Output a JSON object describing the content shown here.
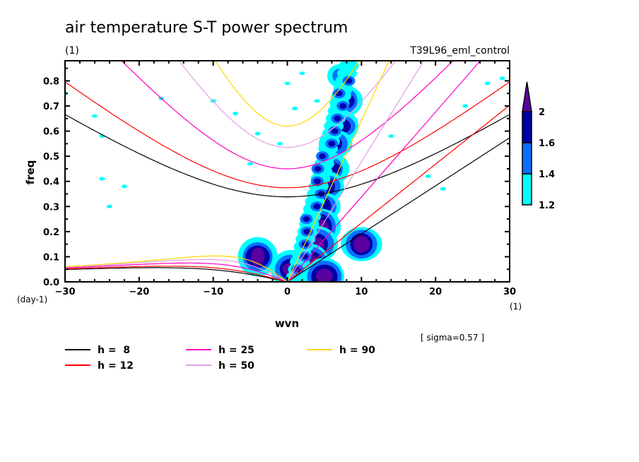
{
  "chart_data": {
    "type": "heatmap",
    "title": "air temperature S-T power spectrum",
    "subtitle_left": "(1)",
    "subtitle_right": "T39L96_eml_control",
    "xlabel": "wvn",
    "ylabel": "freq",
    "x_unit_label": "(1)",
    "y_unit_label": "(day-1)",
    "xlim": [
      -30,
      30
    ],
    "ylim": [
      0,
      0.88
    ],
    "xticks": [
      -30,
      -20,
      -10,
      0,
      10,
      20,
      30
    ],
    "xtick_labels": [
      "−30",
      "−20",
      "−10",
      "0",
      "10",
      "20",
      "30"
    ],
    "yticks": [
      0.0,
      0.1,
      0.2,
      0.3,
      0.4,
      0.5,
      0.6,
      0.7,
      0.8
    ],
    "ytick_labels": [
      "0.0",
      "0.1",
      "0.2",
      "0.3",
      "0.4",
      "0.5",
      "0.6",
      "0.7",
      "0.8"
    ],
    "annotation": "[ sigma=0.57 ]",
    "colorbar": {
      "levels": [
        1.2,
        1.4,
        1.6,
        2
      ],
      "level_labels": [
        "1.2",
        "1.4",
        "1.6",
        "2"
      ],
      "colors": [
        "#00ffff",
        "#0a6eff",
        "#0000a8",
        "#5a00a0"
      ],
      "extend": "max"
    },
    "contour_regions": [
      {
        "wvn": 7.0,
        "freq": 0.82,
        "level": 1.4
      },
      {
        "wvn": 8.0,
        "freq": 0.72,
        "level": 1.6
      },
      {
        "wvn": 7.5,
        "freq": 0.62,
        "level": 1.6
      },
      {
        "wvn": 6.5,
        "freq": 0.55,
        "level": 1.6
      },
      {
        "wvn": 6.0,
        "freq": 0.45,
        "level": 1.6
      },
      {
        "wvn": 5.5,
        "freq": 0.38,
        "level": 1.6
      },
      {
        "wvn": 5.0,
        "freq": 0.3,
        "level": 1.6
      },
      {
        "wvn": 4.5,
        "freq": 0.22,
        "level": 2
      },
      {
        "wvn": 4.0,
        "freq": 0.15,
        "level": 2
      },
      {
        "wvn": 3.0,
        "freq": 0.08,
        "level": 2
      },
      {
        "wvn": 0.5,
        "freq": 0.05,
        "level": 2
      },
      {
        "wvn": 5.0,
        "freq": 0.02,
        "level": 2
      },
      {
        "wvn": 10.0,
        "freq": 0.15,
        "level": 2
      },
      {
        "wvn": -4.0,
        "freq": 0.1,
        "level": 2
      }
    ],
    "legend": {
      "placement": "bottom",
      "entries": [
        {
          "label": "h =  8",
          "color": "#000000",
          "h": 8
        },
        {
          "label": "h = 12",
          "color": "#ff0000",
          "h": 12
        },
        {
          "label": "h = 25",
          "color": "#ff00c0",
          "h": 25
        },
        {
          "label": "h = 50",
          "color": "#e0a0e0",
          "h": 50
        },
        {
          "label": "h = 90",
          "color": "#ffd700",
          "h": 90
        }
      ]
    },
    "dispersion_curves": {
      "equivalent_depths_m": [
        8,
        12,
        25,
        50,
        90
      ],
      "families": [
        "kelvin",
        "equatorial-rossby",
        "inertio-gravity"
      ]
    }
  }
}
